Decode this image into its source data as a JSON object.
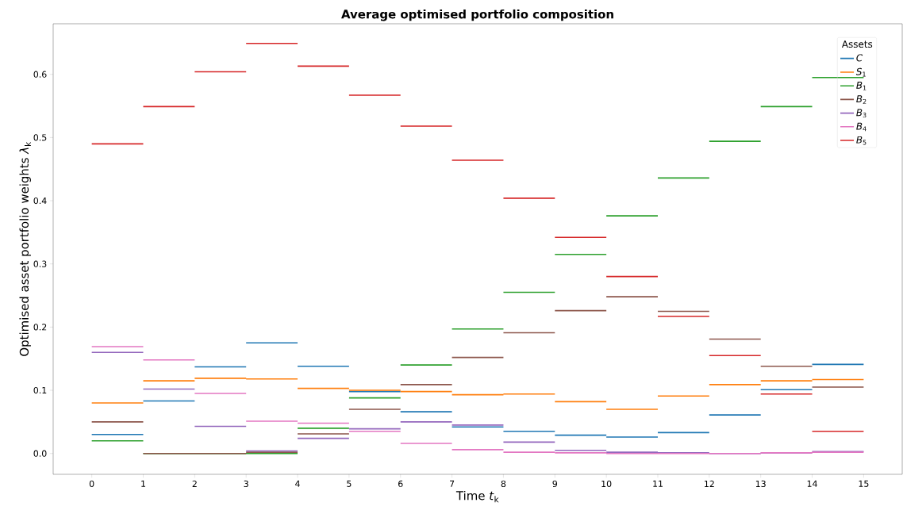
{
  "chart_data": {
    "type": "step",
    "title": "Average optimised portfolio composition",
    "xlabel": "Time *t*$_{k}$",
    "ylabel": "Optimised asset portfolio weights *λ*$_{k}$",
    "legend_title": "Assets",
    "legend": "top right",
    "grid": false,
    "marker": "none",
    "line_style": "solid",
    "x": [
      0,
      1,
      2,
      3,
      4,
      5,
      6,
      7,
      8,
      9,
      10,
      11,
      12,
      13,
      14,
      15
    ],
    "xlim": [
      -0.75,
      15.75
    ],
    "xticks": [
      0,
      1,
      2,
      3,
      4,
      5,
      6,
      7,
      8,
      9,
      10,
      11,
      12,
      13,
      14,
      15
    ],
    "ylim": [
      -0.033,
      0.68
    ],
    "yticks": [
      {
        "value": 0,
        "label": "0.0"
      },
      {
        "value": 0.1,
        "label": "0.1"
      },
      {
        "value": 0.2,
        "label": "0.2"
      },
      {
        "value": 0.3,
        "label": "0.3"
      },
      {
        "value": 0.4,
        "label": "0.4"
      },
      {
        "value": 0.5,
        "label": "0.5"
      },
      {
        "value": 0.6,
        "label": "0.6"
      }
    ],
    "series": [
      {
        "name": "*C*",
        "color": "#1f77b4",
        "values": [
          0.03,
          0.083,
          0.137,
          0.175,
          0.138,
          0.098,
          0.066,
          0.042,
          0.035,
          0.029,
          0.026,
          0.033,
          0.061,
          0.101,
          0.141,
          0.141
        ]
      },
      {
        "name": "*S*$_{1}$",
        "color": "#ff7f0e",
        "values": [
          0.08,
          0.115,
          0.119,
          0.118,
          0.103,
          0.1,
          0.098,
          0.093,
          0.094,
          0.082,
          0.07,
          0.091,
          0.109,
          0.115,
          0.117,
          0.117
        ]
      },
      {
        "name": "*B*$_{1}$",
        "color": "#2ca02c",
        "values": [
          0.02,
          0.0,
          0.0,
          0.0,
          0.04,
          0.088,
          0.14,
          0.197,
          0.255,
          0.315,
          0.376,
          0.436,
          0.494,
          0.549,
          0.595,
          0.595
        ]
      },
      {
        "name": "*B*$_{2}$",
        "color": "#8c564b",
        "values": [
          0.05,
          0.0,
          0.0,
          0.002,
          0.031,
          0.07,
          0.109,
          0.152,
          0.191,
          0.226,
          0.248,
          0.225,
          0.181,
          0.138,
          0.105,
          0.105
        ]
      },
      {
        "name": "*B*$_{3}$",
        "color": "#9467bd",
        "values": [
          0.16,
          0.102,
          0.043,
          0.004,
          0.024,
          0.039,
          0.05,
          0.045,
          0.018,
          0.005,
          0.002,
          0.001,
          0.0,
          0.001,
          0.003,
          0.003
        ]
      },
      {
        "name": "*B*$_{4}$",
        "color": "#e377c2",
        "values": [
          0.169,
          0.148,
          0.095,
          0.051,
          0.048,
          0.035,
          0.016,
          0.006,
          0.002,
          0.001,
          0.0,
          0.0,
          0.0,
          0.001,
          0.002,
          0.002
        ]
      },
      {
        "name": "*B*$_{5}$",
        "color": "#d62728",
        "values": [
          0.49,
          0.549,
          0.604,
          0.649,
          0.613,
          0.567,
          0.518,
          0.464,
          0.404,
          0.342,
          0.28,
          0.217,
          0.155,
          0.094,
          0.035,
          0.035
        ]
      }
    ]
  }
}
